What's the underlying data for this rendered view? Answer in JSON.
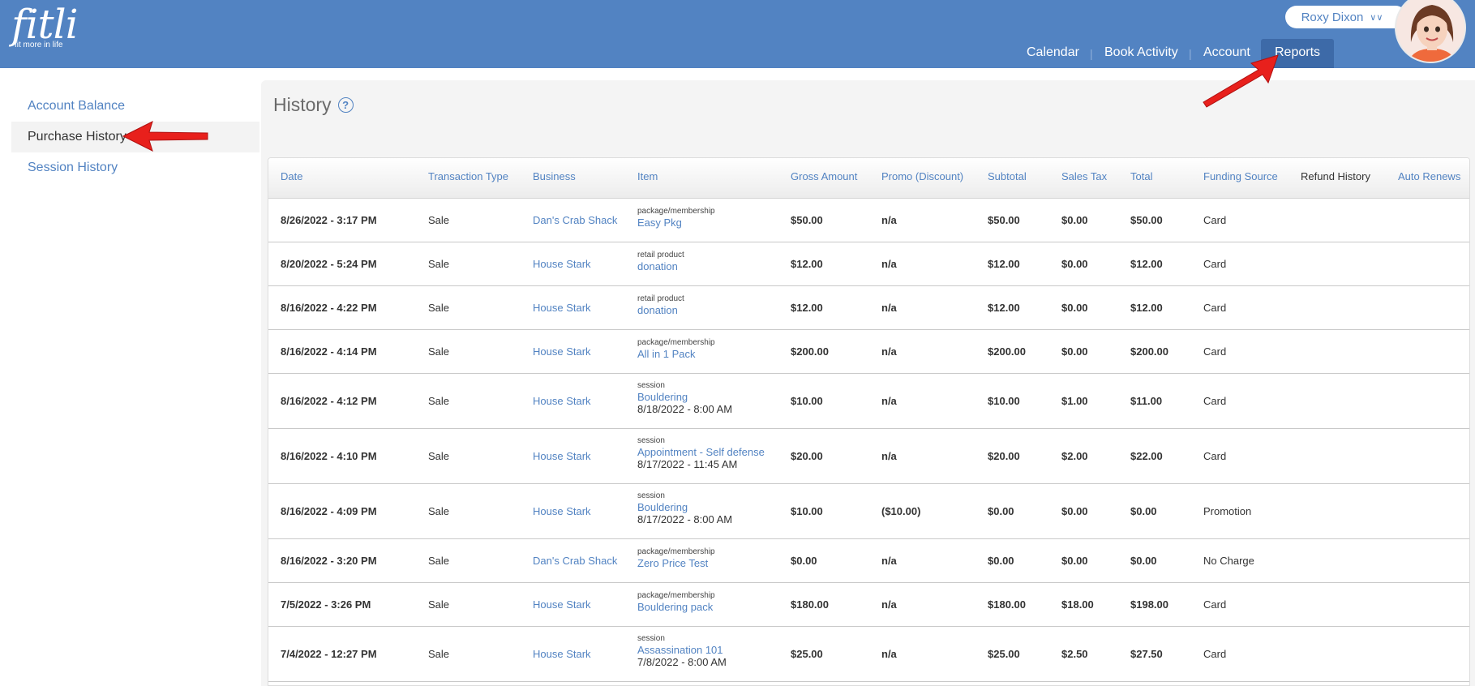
{
  "app": {
    "logo_text": "fitli",
    "logo_tagline": "fit more in life",
    "user_name": "Roxy Dixon"
  },
  "nav": {
    "items": [
      {
        "label": "Calendar"
      },
      {
        "label": "Book Activity"
      },
      {
        "label": "Account"
      },
      {
        "label": "Reports",
        "active": true
      }
    ]
  },
  "sidebar": {
    "items": [
      {
        "label": "Account Balance"
      },
      {
        "label": "Purchase History",
        "active": true
      },
      {
        "label": "Session History"
      }
    ]
  },
  "page": {
    "title": "History",
    "help": "?"
  },
  "table": {
    "columns": [
      "Date",
      "Transaction Type",
      "Business",
      "Item",
      "Gross Amount",
      "Promo (Discount)",
      "Subtotal",
      "Sales Tax",
      "Total",
      "Funding Source",
      "Refund History",
      "Auto Renews"
    ],
    "rows": [
      {
        "date": "8/26/2022 - 3:17 PM",
        "type": "Sale",
        "business": "Dan's Crab Shack",
        "item_type": "package/membership",
        "item_name": "Easy Pkg",
        "item_date": "",
        "gross": "$50.00",
        "promo": "n/a",
        "subtotal": "$50.00",
        "tax": "$0.00",
        "total": "$50.00",
        "funding": "Card"
      },
      {
        "date": "8/20/2022 - 5:24 PM",
        "type": "Sale",
        "business": "House Stark",
        "item_type": "retail product",
        "item_name": "donation",
        "item_date": "",
        "gross": "$12.00",
        "promo": "n/a",
        "subtotal": "$12.00",
        "tax": "$0.00",
        "total": "$12.00",
        "funding": "Card"
      },
      {
        "date": "8/16/2022 - 4:22 PM",
        "type": "Sale",
        "business": "House Stark",
        "item_type": "retail product",
        "item_name": "donation",
        "item_date": "",
        "gross": "$12.00",
        "promo": "n/a",
        "subtotal": "$12.00",
        "tax": "$0.00",
        "total": "$12.00",
        "funding": "Card"
      },
      {
        "date": "8/16/2022 - 4:14 PM",
        "type": "Sale",
        "business": "House Stark",
        "item_type": "package/membership",
        "item_name": "All in 1 Pack",
        "item_date": "",
        "gross": "$200.00",
        "promo": "n/a",
        "subtotal": "$200.00",
        "tax": "$0.00",
        "total": "$200.00",
        "funding": "Card"
      },
      {
        "date": "8/16/2022 - 4:12 PM",
        "type": "Sale",
        "business": "House Stark",
        "item_type": "session",
        "item_name": "Bouldering",
        "item_date": "8/18/2022 - 8:00 AM",
        "gross": "$10.00",
        "promo": "n/a",
        "subtotal": "$10.00",
        "tax": "$1.00",
        "total": "$11.00",
        "funding": "Card"
      },
      {
        "date": "8/16/2022 - 4:10 PM",
        "type": "Sale",
        "business": "House Stark",
        "item_type": "session",
        "item_name": "Appointment - Self defense",
        "item_date": "8/17/2022 - 11:45 AM",
        "gross": "$20.00",
        "promo": "n/a",
        "subtotal": "$20.00",
        "tax": "$2.00",
        "total": "$22.00",
        "funding": "Card"
      },
      {
        "date": "8/16/2022 - 4:09 PM",
        "type": "Sale",
        "business": "House Stark",
        "item_type": "session",
        "item_name": "Bouldering",
        "item_date": "8/17/2022 - 8:00 AM",
        "gross": "$10.00",
        "promo": "($10.00)",
        "subtotal": "$0.00",
        "tax": "$0.00",
        "total": "$0.00",
        "funding": "Promotion"
      },
      {
        "date": "8/16/2022 - 3:20 PM",
        "type": "Sale",
        "business": "Dan's Crab Shack",
        "item_type": "package/membership",
        "item_name": "Zero Price Test",
        "item_date": "",
        "gross": "$0.00",
        "promo": "n/a",
        "subtotal": "$0.00",
        "tax": "$0.00",
        "total": "$0.00",
        "funding": "No Charge"
      },
      {
        "date": "7/5/2022 - 3:26 PM",
        "type": "Sale",
        "business": "House Stark",
        "item_type": "package/membership",
        "item_name": "Bouldering pack",
        "item_date": "",
        "gross": "$180.00",
        "promo": "n/a",
        "subtotal": "$180.00",
        "tax": "$18.00",
        "total": "$198.00",
        "funding": "Card"
      },
      {
        "date": "7/4/2022 - 12:27 PM",
        "type": "Sale",
        "business": "House Stark",
        "item_type": "session",
        "item_name": "Assassination 101",
        "item_date": "7/8/2022 - 8:00 AM",
        "gross": "$25.00",
        "promo": "n/a",
        "subtotal": "$25.00",
        "tax": "$2.50",
        "total": "$27.50",
        "funding": "Card"
      }
    ]
  },
  "colors": {
    "brand_blue": "#5283c2",
    "nav_active": "#3d6aa8",
    "annotation_arrow": "#e8201c"
  }
}
